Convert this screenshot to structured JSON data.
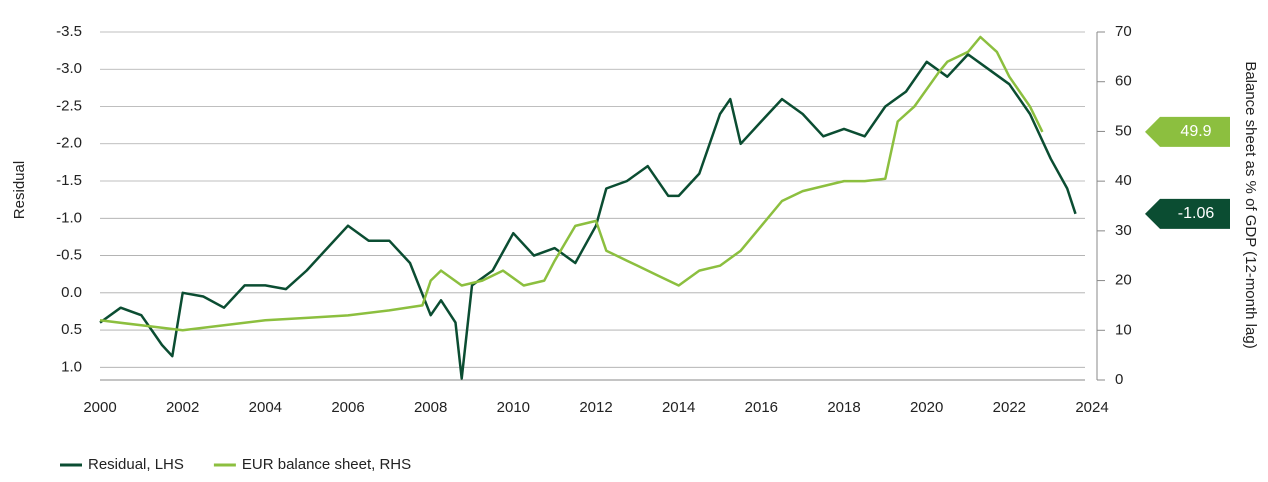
{
  "chart_data": {
    "type": "line",
    "y_label": "Residual",
    "y2_label": "Balance sheet as % of GDP (12-month lag)",
    "xlim": [
      2000,
      2024
    ],
    "xticks": [
      2000,
      2002,
      2004,
      2006,
      2008,
      2010,
      2012,
      2014,
      2016,
      2018,
      2020,
      2022,
      2024
    ],
    "ylim": [
      -3.5,
      1.17
    ],
    "y_inverted": true,
    "yticks": [
      -3.5,
      {
        "value": -3,
        "label": "-3.0"
      },
      -2.5,
      {
        "value": -2,
        "label": "-2.0"
      },
      -1.5,
      {
        "value": -1,
        "label": "-1.0"
      },
      -0.5,
      {
        "value": 0,
        "label": "0.0"
      },
      0.5,
      {
        "value": 1,
        "label": "1.0"
      }
    ],
    "y2lim": [
      0,
      70
    ],
    "y2ticks": [
      0,
      10,
      20,
      30,
      40,
      50,
      60,
      70
    ],
    "grid": true,
    "legend": "bottom-left",
    "series": [
      {
        "name": "Residual, LHS",
        "color": "#0b4d32",
        "axis": "y",
        "end_label": -1.06,
        "x": [
          2000,
          2000.5,
          2001,
          2001.25,
          2001.5,
          2001.75,
          2002,
          2002.5,
          2003,
          2003.5,
          2004,
          2004.5,
          2005,
          2005.5,
          2006,
          2006.5,
          2007,
          2007.5,
          2008,
          2008.25,
          2008.6,
          2008.75,
          2009,
          2009.5,
          2010,
          2010.5,
          2011,
          2011.5,
          2012,
          2012.25,
          2012.75,
          2013.25,
          2013.75,
          2014,
          2014.5,
          2015,
          2015.25,
          2015.5,
          2016,
          2016.5,
          2017,
          2017.5,
          2018,
          2018.5,
          2019,
          2019.5,
          2020,
          2020.5,
          2021,
          2021.5,
          2022,
          2022.5,
          2023,
          2023.4,
          2023.6
        ],
        "values": [
          0.4,
          0.2,
          0.3,
          0.5,
          0.7,
          0.85,
          0.0,
          0.05,
          0.2,
          -0.1,
          -0.1,
          -0.05,
          -0.3,
          -0.6,
          -0.9,
          -0.7,
          -0.7,
          -0.4,
          0.3,
          0.1,
          0.4,
          1.15,
          -0.1,
          -0.3,
          -0.8,
          -0.5,
          -0.6,
          -0.4,
          -0.9,
          -1.4,
          -1.5,
          -1.7,
          -1.3,
          -1.3,
          -1.6,
          -2.4,
          -2.6,
          -2.0,
          -2.3,
          -2.6,
          -2.4,
          -2.1,
          -2.2,
          -2.1,
          -2.5,
          -2.7,
          -3.1,
          -2.9,
          -3.2,
          -3.0,
          -2.8,
          -2.4,
          -1.8,
          -1.4,
          -1.06
        ]
      },
      {
        "name": "EUR balance sheet, RHS",
        "color": "#8cbf3f",
        "axis": "y2",
        "end_label": 49.9,
        "x": [
          2000,
          2001,
          2002,
          2003,
          2004,
          2005,
          2006,
          2007,
          2007.8,
          2008,
          2008.25,
          2008.75,
          2009.25,
          2009.75,
          2010.25,
          2010.75,
          2011,
          2011.5,
          2012,
          2012.25,
          2012.75,
          2013.5,
          2014,
          2014.5,
          2015,
          2015.5,
          2016,
          2016.5,
          2017,
          2017.5,
          2018,
          2018.5,
          2019,
          2019.3,
          2019.7,
          2020.3,
          2020.5,
          2021,
          2021.3,
          2021.7,
          2022,
          2022.5,
          2022.8
        ],
        "values": [
          12,
          11,
          10,
          11,
          12,
          12.5,
          13,
          14,
          15,
          20,
          22,
          19,
          20,
          22,
          19,
          20,
          24,
          31,
          32,
          26,
          24,
          21,
          19,
          22,
          23,
          26,
          31,
          36,
          38,
          39,
          40,
          40,
          40.5,
          52,
          55,
          62,
          64,
          66,
          69,
          66,
          61,
          55,
          49.9
        ]
      }
    ]
  }
}
